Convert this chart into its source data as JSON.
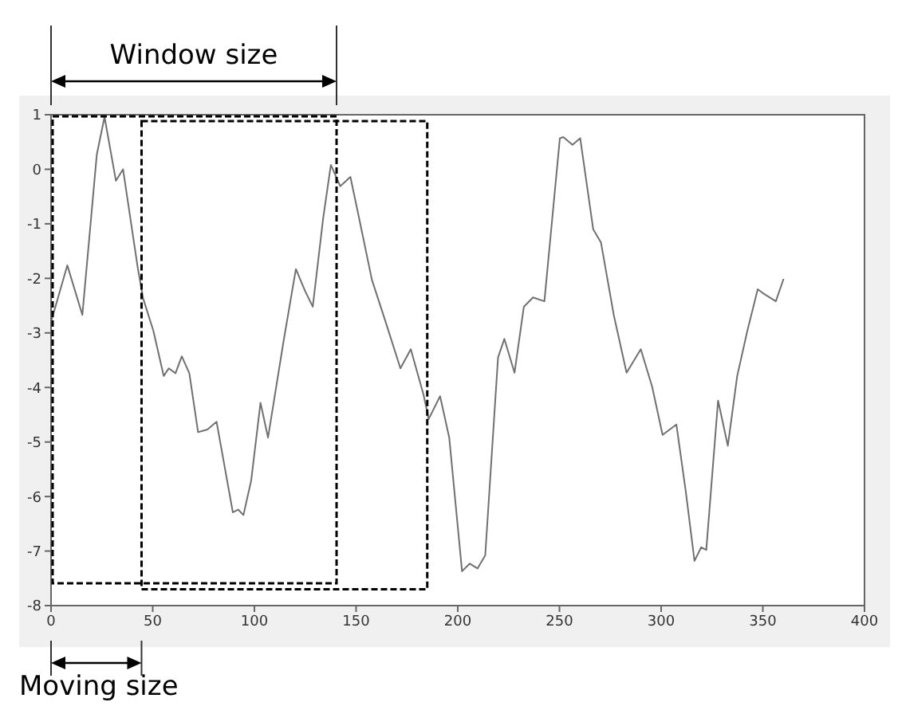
{
  "chart_data": {
    "type": "line",
    "annotations": [
      "Window size",
      "Moving size"
    ],
    "x": [
      0,
      8,
      15.4,
      22.5,
      26.3,
      31.9,
      35.4,
      42.7,
      45.3,
      50.3,
      55.4,
      57.9,
      61.2,
      64.3,
      68,
      72.3,
      76.9,
      81.4,
      89.4,
      92,
      94.6,
      98.4,
      103,
      106.7,
      114.3,
      120.4,
      124.9,
      128.7,
      133.8,
      137.6,
      142.2,
      147.2,
      151.5,
      157.8,
      164.2,
      171.8,
      176.9,
      183.2,
      185.7,
      191.3,
      195.8,
      202.1,
      205.9,
      209.7,
      213.5,
      219.8,
      222.9,
      227.9,
      232.5,
      237,
      242.6,
      250.2,
      251.9,
      256.4,
      260.2,
      266.6,
      270.4,
      276.7,
      283,
      290,
      295.6,
      300.7,
      307.5,
      312.1,
      316.4,
      319.7,
      322.2,
      328,
      332.8,
      337.4,
      342.4,
      347.5,
      350,
      356.4,
      360.2
    ],
    "series": [
      {
        "color": "#707070",
        "values": [
          -2.8,
          -1.76,
          -2.67,
          0.27,
          0.96,
          -0.21,
          0.0,
          -1.82,
          -2.37,
          -2.96,
          -3.79,
          -3.65,
          -3.74,
          -3.43,
          -3.74,
          -4.82,
          -4.77,
          -4.63,
          -6.29,
          -6.24,
          -6.34,
          -5.71,
          -4.28,
          -4.92,
          -3.16,
          -1.83,
          -2.23,
          -2.52,
          -0.9,
          0.08,
          -0.31,
          -0.14,
          -0.9,
          -2.03,
          -2.76,
          -3.65,
          -3.3,
          -4.14,
          -4.58,
          -4.16,
          -4.92,
          -7.37,
          -7.23,
          -7.32,
          -7.08,
          -3.45,
          -3.11,
          -3.73,
          -2.52,
          -2.35,
          -2.42,
          0.57,
          0.59,
          0.45,
          0.57,
          -1.1,
          -1.34,
          -2.67,
          -3.73,
          -3.3,
          -3.99,
          -4.87,
          -4.68,
          -5.9,
          -7.18,
          -6.93,
          -6.98,
          -4.24,
          -5.07,
          -3.79,
          -2.96,
          -2.2,
          -2.27,
          -2.42,
          -2.01
        ]
      }
    ],
    "xlim": [
      0,
      400
    ],
    "xticks": [
      0,
      50,
      100,
      150,
      200,
      250,
      300,
      350,
      400
    ],
    "ylim": [
      -8,
      1
    ],
    "yticks": [
      -8,
      -7,
      -6,
      -5,
      -4,
      -3,
      -2,
      -1,
      0,
      1
    ],
    "legend": false,
    "marker": "none",
    "line_style": "solid"
  }
}
